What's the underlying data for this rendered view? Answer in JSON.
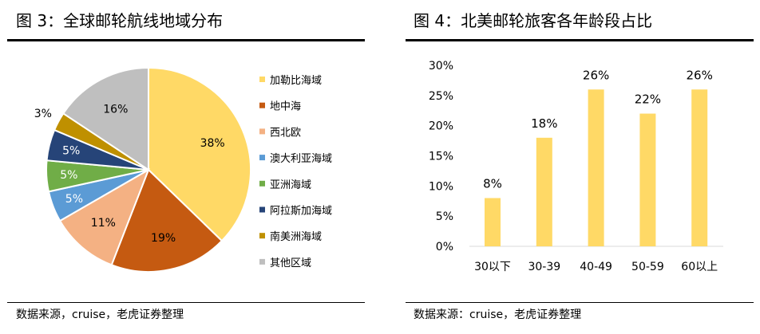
{
  "chart_data": [
    {
      "type": "pie",
      "title": "图 3：全球邮轮航线地域分布",
      "source": "数据来源，cruise，老虎证券整理",
      "categories": [
        "加勒比海域",
        "地中海",
        "西北欧",
        "澳大利亚海域",
        "亚洲海域",
        "阿拉斯加海域",
        "南美洲海域",
        "其他区域"
      ],
      "values": [
        38,
        19,
        11,
        5,
        5,
        5,
        3,
        16
      ],
      "labels": [
        "38%",
        "19%",
        "11%",
        "5%",
        "5%",
        "5%",
        "3%",
        "16%"
      ],
      "colors": [
        "#FFD966",
        "#C55A11",
        "#F4B183",
        "#5B9BD5",
        "#70AD47",
        "#264478",
        "#BF9000",
        "#BFBFBF"
      ],
      "legend": "right"
    },
    {
      "type": "bar",
      "title": "图 4：北美邮轮旅客各年龄段占比",
      "source": "数据来源：cruise，老虎证券整理",
      "categories": [
        "30以下",
        "30-39",
        "40-49",
        "50-59",
        "60以上"
      ],
      "values": [
        8,
        18,
        26,
        22,
        26
      ],
      "labels": [
        "8%",
        "18%",
        "26%",
        "22%",
        "26%"
      ],
      "yticks": [
        "0%",
        "5%",
        "10%",
        "15%",
        "20%",
        "25%",
        "30%"
      ],
      "ylim": [
        0,
        30
      ],
      "color": "#FFD966"
    }
  ]
}
